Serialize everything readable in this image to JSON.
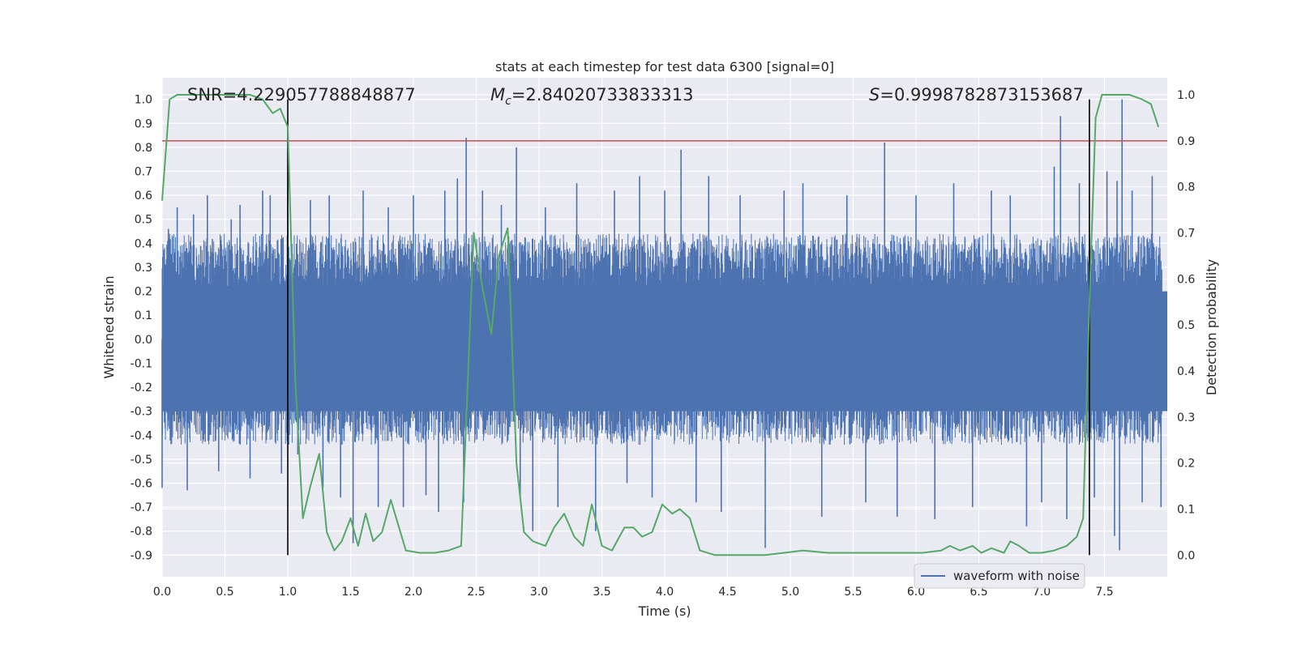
{
  "chart_data": {
    "type": "line",
    "title": "stats at each timestep for test data 6300 [signal=0]",
    "xlabel": "Time (s)",
    "ylabel_left": "Whitened strain",
    "ylabel_right": "Detection probability",
    "xlim": [
      0.0,
      8.0
    ],
    "ylim_left": [
      -0.99,
      1.09
    ],
    "ylim_right": [
      -0.047,
      1.037
    ],
    "x_ticks": [
      "0.0",
      "0.5",
      "1.0",
      "1.5",
      "2.0",
      "2.5",
      "3.0",
      "3.5",
      "4.0",
      "4.5",
      "5.0",
      "5.5",
      "6.0",
      "6.5",
      "7.0",
      "7.5"
    ],
    "x_tick_values": [
      0.0,
      0.5,
      1.0,
      1.5,
      2.0,
      2.5,
      3.0,
      3.5,
      4.0,
      4.5,
      5.0,
      5.5,
      6.0,
      6.5,
      7.0,
      7.5
    ],
    "y_left_ticks": [
      "1.0",
      "0.9",
      "0.8",
      "0.7",
      "0.6",
      "0.5",
      "0.4",
      "0.3",
      "0.2",
      "0.1",
      "0.0",
      "-0.1",
      "-0.2",
      "-0.3",
      "-0.4",
      "-0.5",
      "-0.6",
      "-0.7",
      "-0.8",
      "-0.9"
    ],
    "y_left_tick_values": [
      1.0,
      0.9,
      0.8,
      0.7,
      0.6,
      0.5,
      0.4,
      0.3,
      0.2,
      0.1,
      0.0,
      -0.1,
      -0.2,
      -0.3,
      -0.4,
      -0.5,
      -0.6,
      -0.7,
      -0.8,
      -0.9
    ],
    "y_right_ticks": [
      "1.0",
      "0.9",
      "0.8",
      "0.7",
      "0.6",
      "0.5",
      "0.4",
      "0.3",
      "0.2",
      "0.1",
      "0.0"
    ],
    "y_right_tick_values": [
      1.0,
      0.9,
      0.8,
      0.7,
      0.6,
      0.5,
      0.4,
      0.3,
      0.2,
      0.1,
      0.0
    ],
    "annotations": {
      "snr": "SNR=4.229057788848877",
      "mc_symbol": "M",
      "mc_sub": "c",
      "mc_value": "=2.84020733833313",
      "s_symbol": "S",
      "s_value": "=0.9998782873153687"
    },
    "threshold": {
      "axis": "right",
      "value": 0.9
    },
    "vertical_markers": [
      1.0,
      7.38
    ],
    "marker_range": [
      -0.9,
      1.0
    ],
    "legend": {
      "label": "waveform with noise",
      "position": "lower-right"
    },
    "series": [
      {
        "name": "waveform with noise",
        "axis": "left",
        "color": "#4c72b0",
        "style": "dense noise",
        "typical_envelope": [
          -0.42,
          0.42
        ],
        "peaks": [
          [
            0.0,
            -0.62
          ],
          [
            0.05,
            0.46
          ],
          [
            0.12,
            0.55
          ],
          [
            0.2,
            -0.63
          ],
          [
            0.25,
            0.52
          ],
          [
            0.36,
            0.6
          ],
          [
            0.45,
            -0.55
          ],
          [
            0.55,
            0.5
          ],
          [
            0.62,
            0.56
          ],
          [
            0.7,
            -0.58
          ],
          [
            0.8,
            0.62
          ],
          [
            0.86,
            0.6
          ],
          [
            0.95,
            -0.56
          ],
          [
            1.0,
            0.86
          ],
          [
            1.08,
            -0.48
          ],
          [
            1.18,
            0.58
          ],
          [
            1.28,
            -0.62
          ],
          [
            1.33,
            0.6
          ],
          [
            1.42,
            -0.66
          ],
          [
            1.52,
            -0.85
          ],
          [
            1.6,
            0.62
          ],
          [
            1.72,
            -0.7
          ],
          [
            1.8,
            0.55
          ],
          [
            1.92,
            -0.7
          ],
          [
            2.0,
            0.6
          ],
          [
            2.1,
            -0.65
          ],
          [
            2.2,
            -0.72
          ],
          [
            2.25,
            0.62
          ],
          [
            2.35,
            0.67
          ],
          [
            2.4,
            -0.68
          ],
          [
            2.42,
            0.84
          ],
          [
            2.55,
            0.62
          ],
          [
            2.7,
            0.56
          ],
          [
            2.82,
            0.8
          ],
          [
            2.85,
            -0.66
          ],
          [
            2.95,
            -0.8
          ],
          [
            3.05,
            0.55
          ],
          [
            3.15,
            -0.7
          ],
          [
            3.3,
            0.65
          ],
          [
            3.45,
            -0.8
          ],
          [
            3.6,
            0.62
          ],
          [
            3.7,
            -0.6
          ],
          [
            3.8,
            0.68
          ],
          [
            3.9,
            -0.66
          ],
          [
            4.0,
            0.62
          ],
          [
            4.13,
            0.79
          ],
          [
            4.25,
            -0.68
          ],
          [
            4.35,
            0.68
          ],
          [
            4.45,
            -0.72
          ],
          [
            4.6,
            0.6
          ],
          [
            4.8,
            -0.87
          ],
          [
            4.95,
            0.62
          ],
          [
            5.1,
            0.65
          ],
          [
            5.25,
            -0.74
          ],
          [
            5.45,
            0.6
          ],
          [
            5.6,
            -0.68
          ],
          [
            5.75,
            0.82
          ],
          [
            5.85,
            -0.74
          ],
          [
            6.0,
            0.6
          ],
          [
            6.15,
            -0.75
          ],
          [
            6.3,
            0.65
          ],
          [
            6.45,
            -0.7
          ],
          [
            6.6,
            0.62
          ],
          [
            6.75,
            0.6
          ],
          [
            6.88,
            -0.78
          ],
          [
            7.0,
            -0.68
          ],
          [
            7.1,
            0.72
          ],
          [
            7.15,
            0.93
          ],
          [
            7.2,
            -0.75
          ],
          [
            7.3,
            0.65
          ],
          [
            7.42,
            -0.66
          ],
          [
            7.52,
            0.7
          ],
          [
            7.58,
            -0.82
          ],
          [
            7.6,
            0.66
          ],
          [
            7.62,
            -0.88
          ],
          [
            7.64,
            1.0
          ],
          [
            7.72,
            0.62
          ],
          [
            7.8,
            -0.68
          ],
          [
            7.88,
            0.68
          ],
          [
            7.95,
            -0.7
          ]
        ]
      },
      {
        "name": "detection probability",
        "axis": "right",
        "color": "#55a868",
        "x": [
          0.0,
          0.06,
          0.12,
          0.2,
          0.3,
          0.4,
          0.5,
          0.6,
          0.7,
          0.8,
          0.88,
          0.94,
          1.0,
          1.06,
          1.12,
          1.18,
          1.25,
          1.31,
          1.37,
          1.43,
          1.5,
          1.56,
          1.62,
          1.68,
          1.75,
          1.82,
          1.94,
          2.05,
          2.17,
          2.28,
          2.38,
          2.48,
          2.55,
          2.62,
          2.68,
          2.75,
          2.82,
          2.88,
          2.95,
          3.05,
          3.12,
          3.2,
          3.28,
          3.35,
          3.42,
          3.5,
          3.58,
          3.68,
          3.75,
          3.82,
          3.9,
          3.98,
          4.06,
          4.12,
          4.2,
          4.28,
          4.4,
          4.6,
          4.8,
          4.95,
          5.1,
          5.3,
          5.55,
          5.85,
          6.05,
          6.2,
          6.27,
          6.35,
          6.45,
          6.52,
          6.6,
          6.7,
          6.75,
          6.82,
          6.9,
          7.0,
          7.1,
          7.2,
          7.28,
          7.33,
          7.38,
          7.43,
          7.48,
          7.55,
          7.62,
          7.7,
          7.8,
          7.87,
          7.93
        ],
        "values": [
          0.77,
          0.99,
          1.0,
          1.0,
          1.0,
          1.0,
          1.0,
          1.0,
          1.0,
          0.99,
          0.96,
          0.97,
          0.93,
          0.38,
          0.08,
          0.15,
          0.22,
          0.05,
          0.01,
          0.03,
          0.08,
          0.02,
          0.09,
          0.03,
          0.05,
          0.12,
          0.01,
          0.005,
          0.005,
          0.01,
          0.02,
          0.7,
          0.58,
          0.48,
          0.65,
          0.71,
          0.2,
          0.05,
          0.03,
          0.02,
          0.06,
          0.09,
          0.04,
          0.02,
          0.11,
          0.02,
          0.01,
          0.06,
          0.06,
          0.04,
          0.05,
          0.11,
          0.09,
          0.1,
          0.08,
          0.01,
          0.0,
          0.0,
          0.0,
          0.005,
          0.01,
          0.005,
          0.005,
          0.005,
          0.005,
          0.01,
          0.02,
          0.01,
          0.02,
          0.005,
          0.015,
          0.005,
          0.03,
          0.02,
          0.005,
          0.005,
          0.01,
          0.02,
          0.04,
          0.08,
          0.55,
          0.95,
          1.0,
          1.0,
          1.0,
          1.0,
          0.99,
          0.98,
          0.93
        ]
      }
    ]
  }
}
